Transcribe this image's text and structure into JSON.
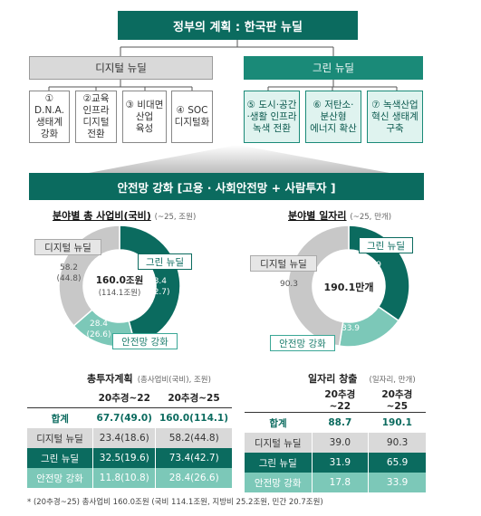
{
  "top_title": "정부의 계획 : 한국판 뉴딜",
  "digital": {
    "label": "디지털 뉴딜",
    "items": [
      "① D.N.A.\n생태계\n강화",
      "②교육\n인프라\n디지털\n전환",
      "③ 비대면\n산업\n육성",
      "④ SOC\n디지털화"
    ]
  },
  "green": {
    "label": "그린 뉴딜",
    "items": [
      "⑤ 도시·공간\n·생활 인프라\n녹색 전환",
      "⑥ 저탄소·\n분산형\n에너지 확산",
      "⑦ 녹색산업\n혁신 생태계\n구축"
    ]
  },
  "banner": "안전망 강화 [고용 · 사회안전망 + 사람투자 ]",
  "chart_data": [
    {
      "type": "pie",
      "title": "분야별 총 사업비(국비)",
      "unit": "(~25, 조원)",
      "center_main": "160.0조원",
      "center_sub": "(114.1조원)",
      "categories": [
        "디지털 뉴딜",
        "그린 뉴딜",
        "안전망 강화"
      ],
      "values": [
        58.2,
        73.4,
        28.4
      ],
      "values_sub": [
        44.8,
        42.7,
        26.6
      ],
      "value_labels": [
        "58.2\n(44.8)",
        "73.4\n(42.7)",
        "28.4\n(26.6)"
      ],
      "colors": [
        "#c8c8c8",
        "#0b6b5f",
        "#7cc8b8"
      ]
    },
    {
      "type": "pie",
      "title": "분야별 일자리",
      "unit": "(~25, 만개)",
      "center_main": "190.1만개",
      "categories": [
        "디지털 뉴딜",
        "그린 뉴딜",
        "안전망 강화"
      ],
      "values": [
        90.3,
        65.9,
        33.9
      ],
      "value_labels": [
        "90.3",
        "65.9",
        "33.9"
      ],
      "colors": [
        "#c8c8c8",
        "#0b6b5f",
        "#7cc8b8"
      ]
    },
    {
      "type": "table",
      "title": "총투자계획",
      "unit": "(총사업비(국비),  조원)",
      "columns": [
        "20추경~22",
        "20추경~25"
      ],
      "rows": [
        {
          "name": "합계",
          "v1": "67.7(49.0)",
          "v2": "160.0(114.1)"
        },
        {
          "name": "디지털 뉴딜",
          "v1": "23.4(18.6)",
          "v2": "58.2(44.8)"
        },
        {
          "name": "그린 뉴딜",
          "v1": "32.5(19.6)",
          "v2": "73.4(42.7)"
        },
        {
          "name": "안전망 강화",
          "v1": "11.8(10.8)",
          "v2": "28.4(26.6)"
        }
      ]
    },
    {
      "type": "table",
      "title": "일자리 창출",
      "unit": "(일자리, 만개)",
      "columns": [
        "20추경~22",
        "20추경~25"
      ],
      "rows": [
        {
          "name": "합계",
          "v1": "88.7",
          "v2": "190.1"
        },
        {
          "name": "디지털 뉴딜",
          "v1": "39.0",
          "v2": "90.3"
        },
        {
          "name": "그린 뉴딜",
          "v1": "31.9",
          "v2": "65.9"
        },
        {
          "name": "안전망 강화",
          "v1": "17.8",
          "v2": "33.9"
        }
      ]
    }
  ],
  "footnote": "* (20추경~25) 총사업비 160.0조원 (국비 114.1조원, 지방비 25.2조원, 민간 20.7조원)"
}
